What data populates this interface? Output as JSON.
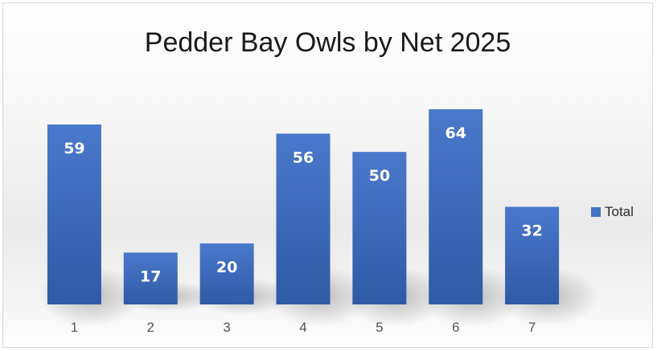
{
  "chart_data": {
    "type": "bar",
    "title": "Pedder Bay Owls by Net 2025",
    "xlabel": "",
    "ylabel": "",
    "categories": [
      "1",
      "2",
      "3",
      "4",
      "5",
      "6",
      "7"
    ],
    "series": [
      {
        "name": "Total",
        "values": [
          59,
          17,
          20,
          56,
          50,
          64,
          32
        ],
        "color": "#4472C4"
      }
    ],
    "ylim": [
      0,
      64
    ],
    "grid": false,
    "data_labels": "inside-end",
    "legend_position": "right"
  }
}
